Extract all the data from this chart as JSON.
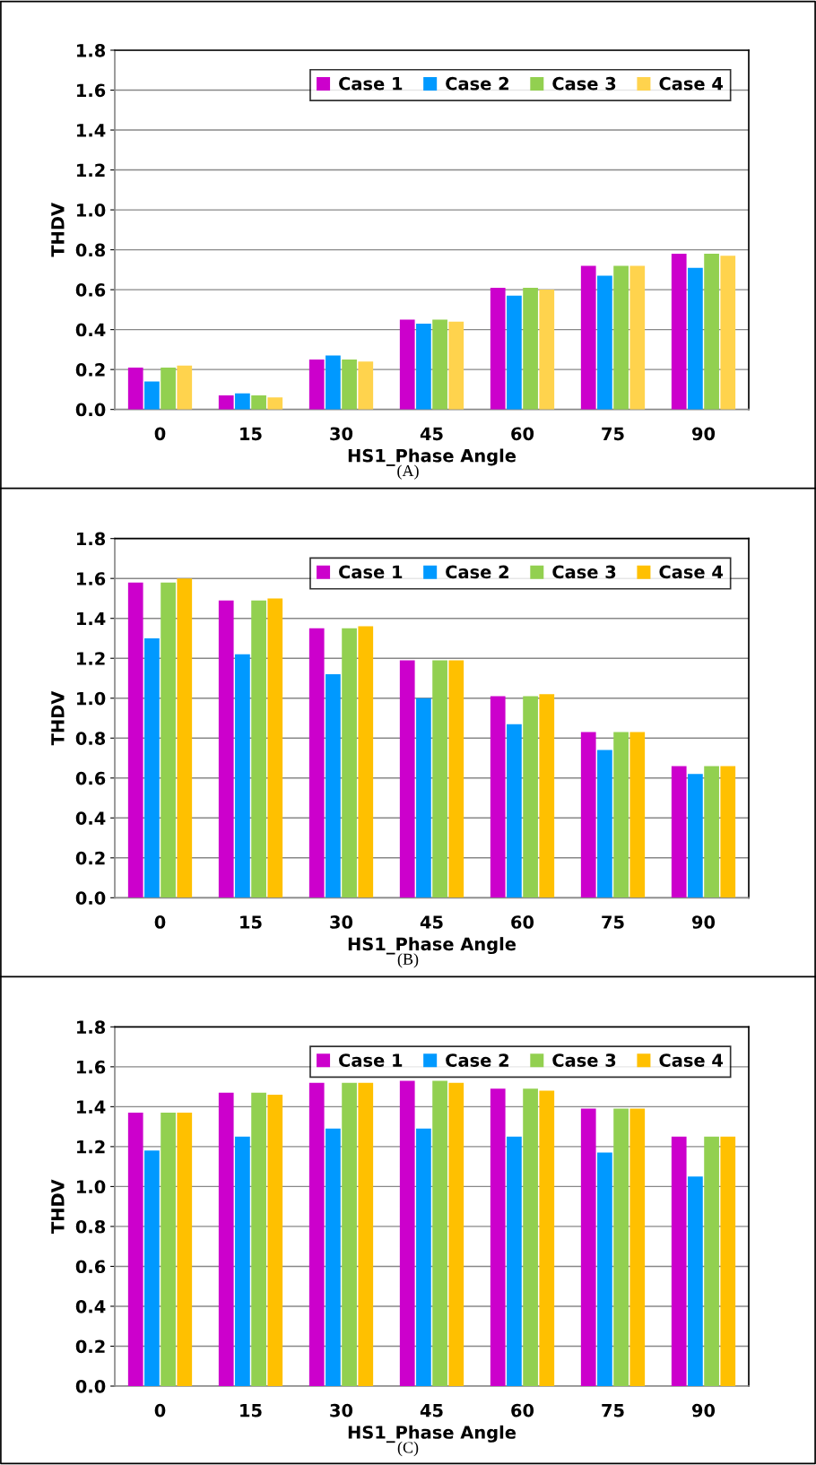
{
  "chart_data": [
    {
      "type": "bar",
      "xlabel": "HS1_Phase Angle",
      "ylabel": "THDV",
      "annotations": [
        "(A)"
      ],
      "categories": [
        "0",
        "15",
        "30",
        "45",
        "60",
        "75",
        "90"
      ],
      "series": [
        {
          "name": "Case 1",
          "color": "#cc00cc",
          "values": [
            0.21,
            0.07,
            0.25,
            0.45,
            0.61,
            0.72,
            0.78
          ]
        },
        {
          "name": "Case 2",
          "color": "#0099ff",
          "values": [
            0.14,
            0.08,
            0.27,
            0.43,
            0.57,
            0.67,
            0.71
          ]
        },
        {
          "name": "Case 3",
          "color": "#92d050",
          "values": [
            0.21,
            0.07,
            0.25,
            0.45,
            0.61,
            0.72,
            0.78
          ]
        },
        {
          "name": "Case 4",
          "color": "#ffd34d",
          "values": [
            0.22,
            0.06,
            0.24,
            0.44,
            0.6,
            0.72,
            0.77
          ]
        }
      ],
      "ylim": [
        0,
        1.8
      ],
      "yticks": [
        {
          "value": 0,
          "label": "0.0"
        },
        {
          "value": 0.2,
          "label": "0.2"
        },
        {
          "value": 0.4,
          "label": "0.4"
        },
        {
          "value": 0.6,
          "label": "0.6"
        },
        {
          "value": 0.8,
          "label": "0.8"
        },
        {
          "value": 1,
          "label": "1.0"
        },
        {
          "value": 1.2,
          "label": "1.2"
        },
        {
          "value": 1.4,
          "label": "1.4"
        },
        {
          "value": 1.6,
          "label": "1.6"
        },
        {
          "value": 1.8,
          "label": "1.8"
        }
      ],
      "grid": "y",
      "legend": "top right"
    },
    {
      "type": "bar",
      "xlabel": "HS1_Phase Angle",
      "ylabel": "THDV",
      "annotations": [
        "(B)"
      ],
      "categories": [
        "0",
        "15",
        "30",
        "45",
        "60",
        "75",
        "90"
      ],
      "series": [
        {
          "name": "Case 1",
          "color": "#cc00cc",
          "values": [
            1.58,
            1.49,
            1.35,
            1.19,
            1.01,
            0.83,
            0.66
          ]
        },
        {
          "name": "Case 2",
          "color": "#0099ff",
          "values": [
            1.3,
            1.22,
            1.12,
            1.0,
            0.87,
            0.74,
            0.62
          ]
        },
        {
          "name": "Case 3",
          "color": "#92d050",
          "values": [
            1.58,
            1.49,
            1.35,
            1.19,
            1.01,
            0.83,
            0.66
          ]
        },
        {
          "name": "Case 4",
          "color": "#ffc000",
          "values": [
            1.6,
            1.5,
            1.36,
            1.19,
            1.02,
            0.83,
            0.66
          ]
        }
      ],
      "ylim": [
        0,
        1.8
      ],
      "yticks": [
        {
          "value": 0,
          "label": "0.0"
        },
        {
          "value": 0.2,
          "label": "0.2"
        },
        {
          "value": 0.4,
          "label": "0.4"
        },
        {
          "value": 0.6,
          "label": "0.6"
        },
        {
          "value": 0.8,
          "label": "0.8"
        },
        {
          "value": 1,
          "label": "1.0"
        },
        {
          "value": 1.2,
          "label": "1.2"
        },
        {
          "value": 1.4,
          "label": "1.4"
        },
        {
          "value": 1.6,
          "label": "1.6"
        },
        {
          "value": 1.8,
          "label": "1.8"
        }
      ],
      "grid": "y",
      "legend": "top right"
    },
    {
      "type": "bar",
      "xlabel": "HS1_Phase Angle",
      "ylabel": "THDV",
      "annotations": [
        "(C)"
      ],
      "categories": [
        "0",
        "15",
        "30",
        "45",
        "60",
        "75",
        "90"
      ],
      "series": [
        {
          "name": "Case 1",
          "color": "#cc00cc",
          "values": [
            1.37,
            1.47,
            1.52,
            1.53,
            1.49,
            1.39,
            1.25
          ]
        },
        {
          "name": "Case 2",
          "color": "#0099ff",
          "values": [
            1.18,
            1.25,
            1.29,
            1.29,
            1.25,
            1.17,
            1.05
          ]
        },
        {
          "name": "Case 3",
          "color": "#92d050",
          "values": [
            1.37,
            1.47,
            1.52,
            1.53,
            1.49,
            1.39,
            1.25
          ]
        },
        {
          "name": "Case 4",
          "color": "#ffc000",
          "values": [
            1.37,
            1.46,
            1.52,
            1.52,
            1.48,
            1.39,
            1.25
          ]
        }
      ],
      "ylim": [
        0,
        1.8
      ],
      "yticks": [
        {
          "value": 0,
          "label": "0.0"
        },
        {
          "value": 0.2,
          "label": "0.2"
        },
        {
          "value": 0.4,
          "label": "0.4"
        },
        {
          "value": 0.6,
          "label": "0.6"
        },
        {
          "value": 0.8,
          "label": "0.8"
        },
        {
          "value": 1,
          "label": "1.0"
        },
        {
          "value": 1.2,
          "label": "1.2"
        },
        {
          "value": 1.4,
          "label": "1.4"
        },
        {
          "value": 1.6,
          "label": "1.6"
        },
        {
          "value": 1.8,
          "label": "1.8"
        }
      ],
      "grid": "y",
      "legend": "top right"
    }
  ]
}
